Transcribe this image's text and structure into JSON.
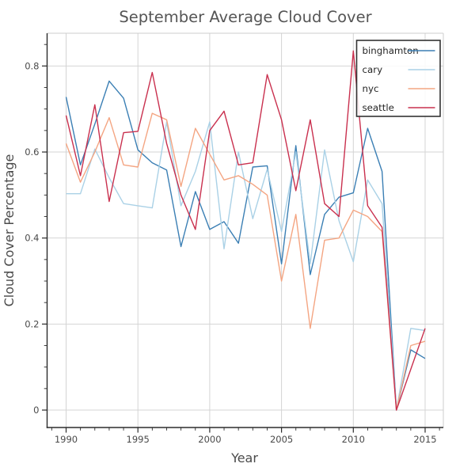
{
  "title": "September Average Cloud Cover",
  "axes": {
    "xlabel": "Year",
    "ylabel": "Cloud Cover Percentage",
    "x_tick_labels": [
      "1990",
      "1995",
      "2000",
      "2005",
      "2010",
      "2015"
    ],
    "y_tick_labels": [
      "0",
      "0.2",
      "0.4",
      "0.6",
      "0.8"
    ]
  },
  "legend": {
    "position": "upper-right",
    "items": [
      "binghamton",
      "cary",
      "nyc",
      "seattle"
    ]
  },
  "colors": {
    "binghamton": "#3b7fb4",
    "cary": "#aad1e6",
    "nyc": "#f4a582",
    "seattle": "#c9304e",
    "grid": "#d4d4d4",
    "spine_dark": "#2b2b2b",
    "spine_light": "#cccccc",
    "title_text": "#555555",
    "label_text": "#4a4a4a",
    "tick_text": "#4a4a4a",
    "legend_border": "#333333",
    "legend_text": "#262626"
  },
  "chart_data": {
    "type": "line",
    "title": "September Average Cloud Cover",
    "xlabel": "Year",
    "ylabel": "Cloud Cover Percentage",
    "grid": true,
    "legend_position": "upper right",
    "xlim": [
      1988.65,
      2016.35
    ],
    "ylim": [
      -0.042,
      0.877
    ],
    "x_major_ticks": [
      1990,
      1995,
      2000,
      2005,
      2010,
      2015
    ],
    "y_major_ticks": [
      0,
      0.2,
      0.4,
      0.6,
      0.8
    ],
    "x": [
      1990,
      1991,
      1992,
      1993,
      1994,
      1995,
      1996,
      1997,
      1998,
      1999,
      2000,
      2001,
      2002,
      2003,
      2004,
      2005,
      2006,
      2007,
      2008,
      2009,
      2010,
      2011,
      2012,
      2013,
      2014,
      2015
    ],
    "series": [
      {
        "name": "binghamton",
        "values": [
          0.728,
          0.57,
          0.665,
          0.765,
          0.725,
          0.605,
          0.575,
          0.558,
          0.38,
          0.508,
          0.42,
          0.438,
          0.388,
          0.565,
          0.568,
          0.34,
          0.615,
          0.315,
          0.455,
          0.495,
          0.505,
          0.655,
          0.555,
          0.0,
          0.14,
          0.12
        ]
      },
      {
        "name": "cary",
        "values": [
          0.503,
          0.503,
          0.607,
          0.54,
          0.48,
          0.475,
          0.47,
          0.67,
          0.475,
          0.555,
          0.67,
          0.375,
          0.6,
          0.445,
          0.56,
          0.415,
          0.6,
          0.34,
          0.605,
          0.44,
          0.345,
          0.535,
          0.48,
          0.0,
          0.19,
          0.185
        ]
      },
      {
        "name": "nyc",
        "values": [
          0.62,
          0.53,
          0.6,
          0.68,
          0.57,
          0.565,
          0.69,
          0.675,
          0.52,
          0.655,
          0.595,
          0.535,
          0.545,
          0.525,
          0.5,
          0.3,
          0.455,
          0.19,
          0.395,
          0.4,
          0.465,
          0.45,
          0.415,
          0.0,
          0.15,
          0.16
        ]
      },
      {
        "name": "seattle",
        "values": [
          0.685,
          0.545,
          0.71,
          0.485,
          0.645,
          0.648,
          0.785,
          0.62,
          0.5,
          0.42,
          0.65,
          0.695,
          0.57,
          0.575,
          0.78,
          0.675,
          0.51,
          0.675,
          0.48,
          0.45,
          0.835,
          0.475,
          0.425,
          0.0,
          0.095,
          0.19
        ]
      }
    ]
  }
}
